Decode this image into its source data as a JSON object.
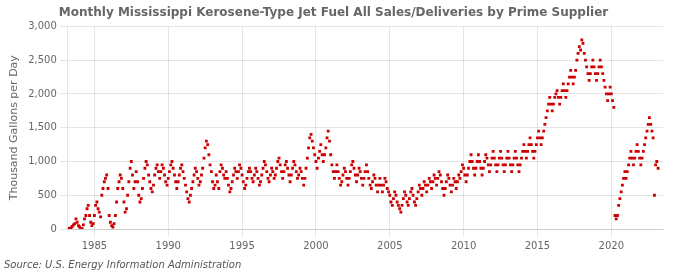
{
  "chart_data": {
    "type": "scatter",
    "title": "Monthly Mississippi Kerosene-Type Jet Fuel All Sales/Deliveries by Prime Supplier",
    "y_label": "Thousand Gallons per Day",
    "annotation": "Source: U.S. Energy Information Administration",
    "color": "#cc0000",
    "marker": "square",
    "grid": true,
    "xlim": [
      1983.2,
      2023.5
    ],
    "xticks": [
      1985,
      1990,
      1995,
      2000,
      2005,
      2010,
      2015,
      2020
    ],
    "ylim": [
      0,
      3000
    ],
    "yticks": [
      0,
      500,
      {
        "value": 1000,
        "label": "1,000"
      },
      {
        "value": 1500,
        "label": "1,500"
      },
      {
        "value": 2000,
        "label": "2,000"
      },
      {
        "value": 2500,
        "label": "2,500"
      },
      {
        "value": 3000,
        "label": "3,000"
      }
    ],
    "x": [
      1983.25,
      1983.33,
      1983.42,
      1983.5,
      1983.58,
      1983.67,
      1983.75,
      1983.83,
      1983.92,
      1984.0,
      1984.08,
      1984.17,
      1984.25,
      1984.33,
      1984.42,
      1984.5,
      1984.58,
      1984.67,
      1984.75,
      1984.83,
      1984.92,
      1985.0,
      1985.08,
      1985.17,
      1985.25,
      1985.33,
      1985.42,
      1985.5,
      1985.58,
      1985.67,
      1985.75,
      1985.83,
      1985.92,
      1986.0,
      1986.08,
      1986.17,
      1986.25,
      1986.33,
      1986.42,
      1986.5,
      1986.58,
      1986.67,
      1986.75,
      1986.83,
      1986.92,
      1987.0,
      1987.08,
      1987.17,
      1987.25,
      1987.33,
      1987.42,
      1987.5,
      1987.58,
      1987.67,
      1987.75,
      1987.83,
      1987.92,
      1988.0,
      1988.08,
      1988.17,
      1988.25,
      1988.33,
      1988.42,
      1988.5,
      1988.58,
      1988.67,
      1988.75,
      1988.83,
      1988.92,
      1989.0,
      1989.08,
      1989.17,
      1989.25,
      1989.33,
      1989.42,
      1989.5,
      1989.58,
      1989.67,
      1989.75,
      1989.83,
      1989.92,
      1990.0,
      1990.08,
      1990.17,
      1990.25,
      1990.33,
      1990.42,
      1990.5,
      1990.58,
      1990.67,
      1990.75,
      1990.83,
      1990.92,
      1991.0,
      1991.08,
      1991.17,
      1991.25,
      1991.33,
      1991.42,
      1991.5,
      1991.58,
      1991.67,
      1991.75,
      1991.83,
      1991.92,
      1992.0,
      1992.08,
      1992.17,
      1992.25,
      1992.33,
      1992.42,
      1992.5,
      1992.58,
      1992.67,
      1992.75,
      1992.83,
      1992.92,
      1993.0,
      1993.08,
      1993.17,
      1993.25,
      1993.33,
      1993.42,
      1993.5,
      1993.58,
      1993.67,
      1993.75,
      1993.83,
      1993.92,
      1994.0,
      1994.08,
      1994.17,
      1994.25,
      1994.33,
      1994.42,
      1994.5,
      1994.58,
      1994.67,
      1994.75,
      1994.83,
      1994.92,
      1995.0,
      1995.08,
      1995.17,
      1995.25,
      1995.33,
      1995.42,
      1995.5,
      1995.58,
      1995.67,
      1995.75,
      1995.83,
      1995.92,
      1996.0,
      1996.08,
      1996.17,
      1996.25,
      1996.33,
      1996.42,
      1996.5,
      1996.58,
      1996.67,
      1996.75,
      1996.83,
      1996.92,
      1997.0,
      1997.08,
      1997.17,
      1997.25,
      1997.33,
      1997.42,
      1997.5,
      1997.58,
      1997.67,
      1997.75,
      1997.83,
      1997.92,
      1998.0,
      1998.08,
      1998.17,
      1998.25,
      1998.33,
      1998.42,
      1998.5,
      1998.58,
      1998.67,
      1998.75,
      1998.83,
      1998.92,
      1999.0,
      1999.08,
      1999.17,
      1999.25,
      1999.33,
      1999.42,
      1999.5,
      1999.58,
      1999.67,
      1999.75,
      1999.83,
      1999.92,
      2000.0,
      2000.08,
      2000.17,
      2000.25,
      2000.33,
      2000.42,
      2000.5,
      2000.58,
      2000.67,
      2000.75,
      2000.83,
      2000.92,
      2001.0,
      2001.08,
      2001.17,
      2001.25,
      2001.33,
      2001.42,
      2001.5,
      2001.58,
      2001.67,
      2001.75,
      2001.83,
      2001.92,
      2002.0,
      2002.08,
      2002.17,
      2002.25,
      2002.33,
      2002.42,
      2002.5,
      2002.58,
      2002.67,
      2002.75,
      2002.83,
      2002.92,
      2003.0,
      2003.08,
      2003.17,
      2003.25,
      2003.33,
      2003.42,
      2003.5,
      2003.58,
      2003.67,
      2003.75,
      2003.83,
      2003.92,
      2004.0,
      2004.08,
      2004.17,
      2004.25,
      2004.33,
      2004.42,
      2004.5,
      2004.58,
      2004.67,
      2004.75,
      2004.83,
      2004.92,
      2005.0,
      2005.08,
      2005.17,
      2005.25,
      2005.33,
      2005.42,
      2005.5,
      2005.58,
      2005.67,
      2005.75,
      2005.83,
      2005.92,
      2006.0,
      2006.08,
      2006.17,
      2006.25,
      2006.33,
      2006.42,
      2006.5,
      2006.58,
      2006.67,
      2006.75,
      2006.83,
      2006.92,
      2007.0,
      2007.08,
      2007.17,
      2007.25,
      2007.33,
      2007.42,
      2007.5,
      2007.58,
      2007.67,
      2007.75,
      2007.83,
      2007.92,
      2008.0,
      2008.08,
      2008.17,
      2008.25,
      2008.33,
      2008.42,
      2008.5,
      2008.58,
      2008.67,
      2008.75,
      2008.83,
      2008.92,
      2009.0,
      2009.08,
      2009.17,
      2009.25,
      2009.33,
      2009.42,
      2009.5,
      2009.58,
      2009.67,
      2009.75,
      2009.83,
      2009.92,
      2010.0,
      2010.08,
      2010.17,
      2010.25,
      2010.33,
      2010.42,
      2010.5,
      2010.58,
      2010.67,
      2010.75,
      2010.83,
      2010.92,
      2011.0,
      2011.08,
      2011.17,
      2011.25,
      2011.33,
      2011.42,
      2011.5,
      2011.58,
      2011.67,
      2011.75,
      2011.83,
      2011.92,
      2012.0,
      2012.08,
      2012.17,
      2012.25,
      2012.33,
      2012.42,
      2012.5,
      2012.58,
      2012.67,
      2012.75,
      2012.83,
      2012.92,
      2013.0,
      2013.08,
      2013.17,
      2013.25,
      2013.33,
      2013.42,
      2013.5,
      2013.58,
      2013.67,
      2013.75,
      2013.83,
      2013.92,
      2014.0,
      2014.08,
      2014.17,
      2014.25,
      2014.33,
      2014.42,
      2014.5,
      2014.58,
      2014.67,
      2014.75,
      2014.83,
      2014.92,
      2015.0,
      2015.08,
      2015.17,
      2015.25,
      2015.33,
      2015.42,
      2015.5,
      2015.58,
      2015.67,
      2015.75,
      2015.83,
      2015.92,
      2016.0,
      2016.08,
      2016.17,
      2016.25,
      2016.33,
      2016.42,
      2016.5,
      2016.58,
      2016.67,
      2016.75,
      2016.83,
      2016.92,
      2017.0,
      2017.08,
      2017.17,
      2017.25,
      2017.33,
      2017.42,
      2017.5,
      2017.58,
      2017.67,
      2017.75,
      2017.83,
      2017.92,
      2018.0,
      2018.08,
      2018.17,
      2018.25,
      2018.33,
      2018.42,
      2018.5,
      2018.58,
      2018.67,
      2018.75,
      2018.83,
      2018.92,
      2019.0,
      2019.08,
      2019.17,
      2019.25,
      2019.33,
      2019.42,
      2019.5,
      2019.58,
      2019.67,
      2019.75,
      2019.83,
      2019.92,
      2020.0,
      2020.08,
      2020.17,
      2020.25,
      2020.33,
      2020.42,
      2020.5,
      2020.58,
      2020.67,
      2020.75,
      2020.83,
      2020.92,
      2021.0,
      2021.08,
      2021.17,
      2021.25,
      2021.33,
      2021.42,
      2021.5,
      2021.58,
      2021.67,
      2021.75,
      2021.83,
      2021.92,
      2022.0,
      2022.08,
      2022.17,
      2022.25,
      2022.33,
      2022.42,
      2022.5,
      2022.58,
      2022.67,
      2022.75,
      2022.83,
      2022.92,
      2023.0,
      2023.08,
      2023.17
    ],
    "values": [
      10,
      5,
      20,
      40,
      60,
      80,
      150,
      100,
      50,
      30,
      10,
      5,
      60,
      150,
      200,
      300,
      350,
      200,
      100,
      50,
      80,
      200,
      350,
      400,
      300,
      250,
      180,
      500,
      600,
      700,
      750,
      800,
      600,
      200,
      100,
      50,
      30,
      80,
      200,
      400,
      600,
      700,
      800,
      750,
      600,
      400,
      250,
      300,
      500,
      700,
      900,
      1000,
      800,
      600,
      700,
      850,
      700,
      500,
      400,
      450,
      600,
      750,
      900,
      1000,
      950,
      800,
      700,
      600,
      550,
      650,
      800,
      900,
      950,
      850,
      750,
      850,
      950,
      900,
      800,
      700,
      650,
      750,
      850,
      950,
      1000,
      900,
      800,
      700,
      600,
      700,
      800,
      900,
      950,
      850,
      750,
      650,
      550,
      450,
      400,
      500,
      600,
      700,
      800,
      900,
      850,
      750,
      650,
      700,
      800,
      900,
      1050,
      1200,
      1300,
      1250,
      1100,
      950,
      850,
      700,
      600,
      650,
      800,
      700,
      600,
      850,
      950,
      900,
      800,
      750,
      850,
      750,
      650,
      550,
      600,
      700,
      800,
      900,
      850,
      750,
      850,
      950,
      900,
      800,
      700,
      600,
      650,
      750,
      850,
      900,
      850,
      750,
      700,
      800,
      900,
      850,
      750,
      650,
      700,
      800,
      900,
      1000,
      950,
      850,
      750,
      700,
      800,
      900,
      850,
      750,
      800,
      900,
      1000,
      1050,
      950,
      850,
      750,
      850,
      950,
      1000,
      900,
      800,
      700,
      800,
      900,
      1000,
      950,
      850,
      750,
      800,
      900,
      850,
      750,
      650,
      750,
      900,
      1050,
      1200,
      1350,
      1400,
      1300,
      1200,
      1100,
      1000,
      900,
      1050,
      1150,
      1250,
      1100,
      1000,
      1100,
      1200,
      1350,
      1450,
      1300,
      1100,
      950,
      850,
      750,
      850,
      950,
      850,
      750,
      650,
      700,
      800,
      900,
      850,
      750,
      650,
      750,
      850,
      950,
      1000,
      900,
      800,
      700,
      800,
      900,
      850,
      750,
      650,
      750,
      850,
      950,
      850,
      750,
      650,
      600,
      700,
      800,
      750,
      650,
      550,
      650,
      750,
      650,
      550,
      650,
      750,
      700,
      600,
      550,
      500,
      400,
      350,
      450,
      550,
      500,
      400,
      350,
      300,
      250,
      350,
      450,
      550,
      500,
      400,
      350,
      450,
      550,
      600,
      500,
      400,
      350,
      450,
      550,
      650,
      600,
      500,
      600,
      700,
      650,
      550,
      650,
      750,
      700,
      600,
      700,
      800,
      750,
      650,
      750,
      850,
      800,
      700,
      600,
      500,
      600,
      700,
      800,
      750,
      650,
      550,
      650,
      750,
      700,
      600,
      700,
      800,
      750,
      850,
      950,
      900,
      800,
      700,
      800,
      900,
      1000,
      1100,
      1000,
      900,
      800,
      900,
      1000,
      1100,
      1000,
      900,
      800,
      900,
      1000,
      1100,
      1050,
      950,
      850,
      950,
      1050,
      1150,
      1050,
      950,
      850,
      950,
      1050,
      1150,
      1050,
      950,
      850,
      950,
      1050,
      1150,
      1050,
      950,
      850,
      950,
      1050,
      1150,
      1050,
      950,
      850,
      950,
      1050,
      1150,
      1250,
      1150,
      1050,
      1150,
      1250,
      1350,
      1250,
      1150,
      1050,
      1150,
      1250,
      1350,
      1450,
      1350,
      1250,
      1350,
      1450,
      1550,
      1650,
      1750,
      1850,
      1950,
      1850,
      1750,
      1850,
      1950,
      2000,
      2050,
      1950,
      1850,
      1950,
      2050,
      2150,
      2050,
      1950,
      2050,
      2150,
      2250,
      2350,
      2250,
      2150,
      2250,
      2350,
      2500,
      2600,
      2700,
      2650,
      2800,
      2750,
      2600,
      2500,
      2400,
      2300,
      2200,
      2300,
      2400,
      2500,
      2400,
      2300,
      2200,
      2300,
      2400,
      2500,
      2400,
      2300,
      2200,
      2100,
      2000,
      1900,
      2000,
      2100,
      2000,
      1900,
      1800,
      200,
      150,
      200,
      350,
      450,
      550,
      650,
      750,
      850,
      750,
      850,
      950,
      1050,
      1150,
      1050,
      950,
      1050,
      1150,
      1250,
      1150,
      1050,
      950,
      1050,
      1150,
      1250,
      1350,
      1450,
      1550,
      1650,
      1550,
      1450,
      1350,
      500,
      950,
      1000,
      900
    ]
  }
}
